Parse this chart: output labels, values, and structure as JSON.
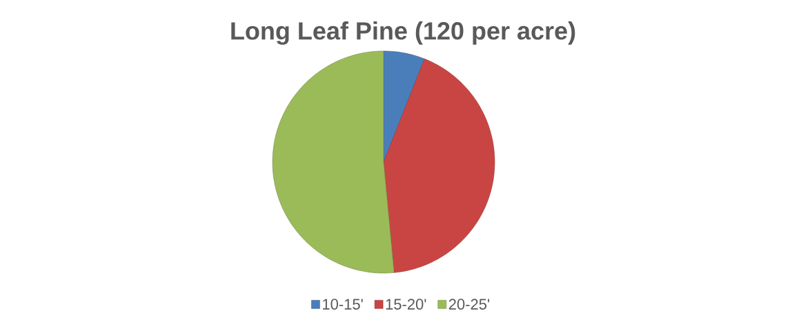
{
  "chart_data": {
    "type": "pie",
    "title": "Long Leaf Pine (120 per acre)",
    "categories": [
      "10-15'",
      "15-20'",
      "20-25'"
    ],
    "values": [
      6,
      42.5,
      51.5
    ],
    "colors": [
      "#4a7ebb",
      "#c94543",
      "#9bbb59"
    ],
    "legend": "bottom"
  }
}
